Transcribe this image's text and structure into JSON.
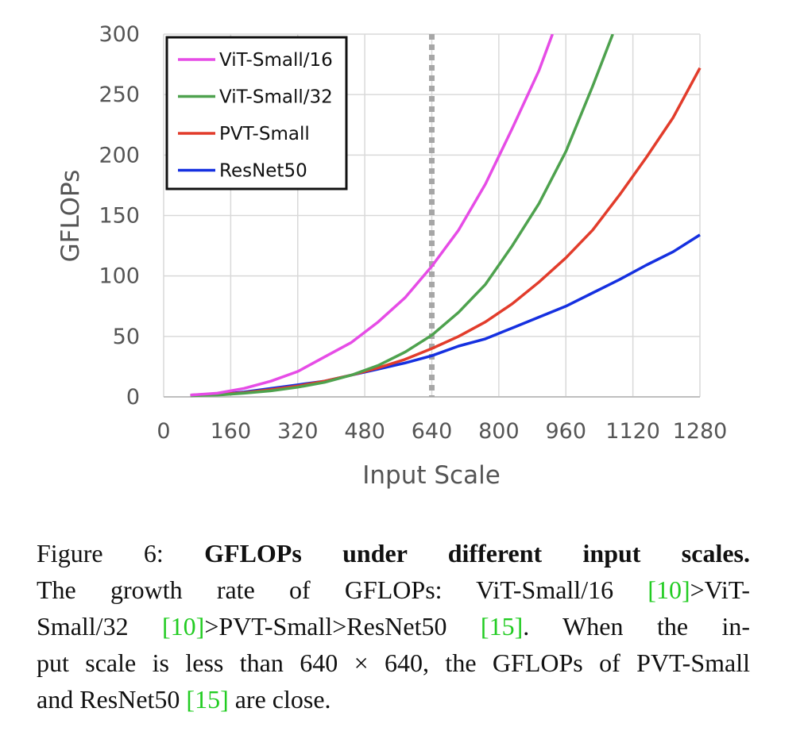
{
  "chart_data": {
    "type": "line",
    "xlabel": "Input Scale",
    "ylabel": "GFLOPs",
    "xlim": [
      0,
      1280
    ],
    "ylim": [
      0,
      300
    ],
    "xticks": [
      0,
      160,
      320,
      480,
      640,
      800,
      960,
      1120,
      1280
    ],
    "yticks": [
      0,
      50,
      100,
      150,
      200,
      250,
      300
    ],
    "grid": true,
    "legend_position": "top-left",
    "reference_line": {
      "x": 640,
      "style": "dotted",
      "color": "#a6a6a6"
    },
    "series": [
      {
        "name": "ViT-Small/16",
        "color": "#e64ce6",
        "x": [
          64,
          128,
          192,
          256,
          320,
          384,
          448,
          512,
          576,
          640,
          704,
          768,
          832,
          896,
          928
        ],
        "y": [
          1.5,
          3,
          7,
          13,
          21,
          33,
          45,
          62,
          82,
          108,
          138,
          176,
          222,
          270,
          300
        ]
      },
      {
        "name": "ViT-Small/32",
        "color": "#4ea24e",
        "x": [
          64,
          128,
          192,
          256,
          320,
          384,
          448,
          512,
          576,
          640,
          704,
          768,
          832,
          896,
          960,
          1024,
          1072
        ],
        "y": [
          1,
          1.5,
          3,
          5,
          8,
          12,
          18,
          26,
          37,
          51,
          70,
          93,
          125,
          160,
          203,
          257,
          300
        ]
      },
      {
        "name": "PVT-Small",
        "color": "#e23c2b",
        "x": [
          64,
          128,
          192,
          256,
          320,
          384,
          448,
          512,
          576,
          640,
          704,
          768,
          832,
          896,
          960,
          1024,
          1088,
          1152,
          1216,
          1280
        ],
        "y": [
          1.5,
          2,
          3.5,
          6,
          9,
          13,
          18,
          24,
          31,
          40,
          50,
          62,
          77,
          95,
          115,
          138,
          167,
          198,
          231,
          272
        ]
      },
      {
        "name": "ResNet50",
        "color": "#1530e0",
        "x": [
          64,
          128,
          192,
          256,
          320,
          384,
          448,
          512,
          576,
          640,
          704,
          768,
          832,
          896,
          960,
          1024,
          1088,
          1152,
          1216,
          1280
        ],
        "y": [
          1.5,
          2,
          4,
          7,
          10,
          13,
          18,
          23,
          28,
          34,
          42,
          48,
          57,
          66,
          75,
          86,
          97,
          109,
          120,
          134
        ]
      }
    ]
  },
  "caption": {
    "label": "Figure 6:",
    "title": "GFLOPs under different input scales.",
    "l2_text": "The growth rate of GFLOPs: ViT-Small/16 ",
    "l2_ref": "[10]",
    "l2_tail": ">ViT-",
    "l3_text1": "Small/32 ",
    "l3_ref1": "[10]",
    "l3_text2": ">PVT-Small>ResNet50 ",
    "l3_ref2": "[15]",
    "l3_text3": ". When the in-",
    "l4_text": "put scale is less than 640 × 640, the GFLOPs of PVT-Small",
    "l5_text1": "and ResNet50 ",
    "l5_ref": "[15]",
    "l5_text2": " are close."
  }
}
